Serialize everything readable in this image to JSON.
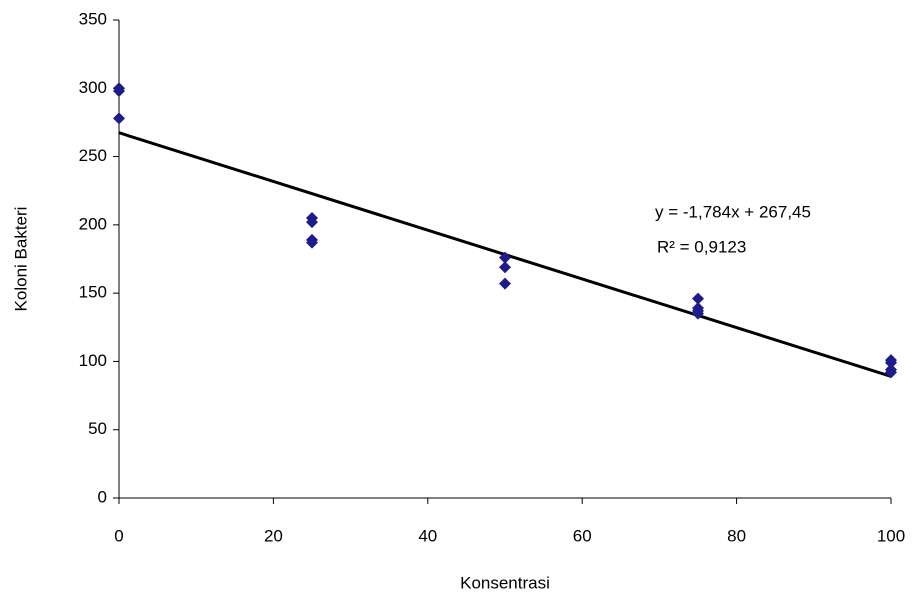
{
  "chart_data": {
    "type": "scatter",
    "x_label": "Konsentrasi",
    "y_label": "Koloni Bakteri",
    "series": [
      {
        "color": "#1c1c8a",
        "x": [
          0,
          0,
          0,
          25,
          25,
          25,
          25,
          50,
          50,
          50,
          75,
          75,
          75,
          75,
          100,
          100,
          100,
          100
        ],
        "values": [
          300,
          298,
          278,
          205,
          202,
          189,
          187,
          176,
          169,
          157,
          146,
          139,
          137,
          135,
          101,
          99,
          94,
          92
        ]
      }
    ],
    "trendline": {
      "x": [
        0,
        100
      ],
      "values": [
        267.45,
        89.05
      ],
      "color": "#000000"
    },
    "annotations": [
      "y = -1,784x + 267,45",
      "R² = 0,9123"
    ],
    "xlim": [
      0,
      100
    ],
    "xticks": [
      0,
      20,
      40,
      60,
      80,
      100
    ],
    "ylim": [
      0,
      350
    ],
    "yticks": [
      0,
      50,
      100,
      150,
      200,
      250,
      300,
      350
    ],
    "grid": false
  }
}
